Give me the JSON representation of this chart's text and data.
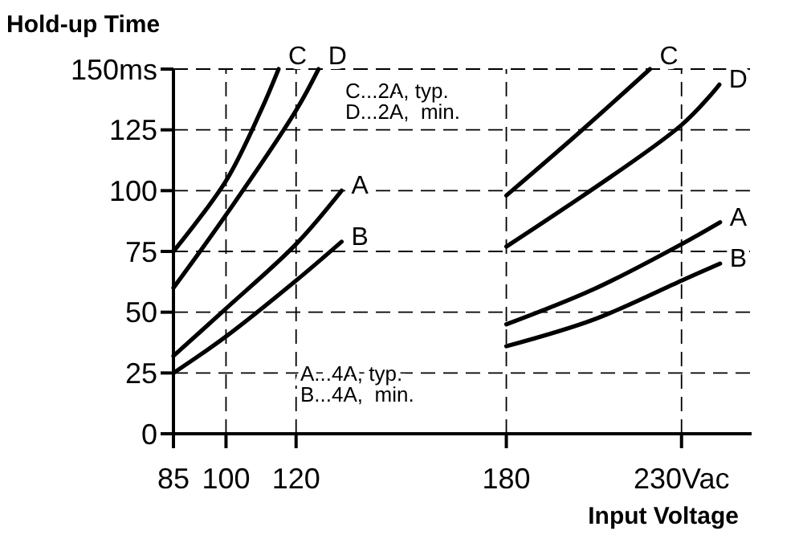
{
  "chart_data": {
    "type": "line",
    "ylabel": "Hold-up Time",
    "xlabel": "Input Voltage",
    "xlim": [
      85,
      250
    ],
    "xticks": [
      85,
      100,
      120,
      180,
      {
        "value": 230,
        "label": "230Vac"
      }
    ],
    "ylim": [
      0,
      150
    ],
    "yticks": [
      0,
      25,
      50,
      75,
      100,
      125,
      {
        "value": 150,
        "label": "150ms"
      }
    ],
    "grid": true,
    "line_style": "solid",
    "series": [
      {
        "name": "C",
        "color": "#000000",
        "x": [
          85,
          100,
          110,
          115,
          null,
          180,
          200.5,
          221
        ],
        "values": [
          75,
          104,
          133,
          150,
          null,
          98,
          123.5,
          150
        ]
      },
      {
        "name": "D",
        "color": "#000000",
        "x": [
          85,
          100,
          120,
          126.4,
          null,
          180,
          230,
          240.8
        ],
        "values": [
          60,
          90,
          133,
          150,
          null,
          77,
          127,
          143.6
        ]
      },
      {
        "name": "A",
        "color": "#000000",
        "x": [
          85,
          100,
          120,
          133,
          null,
          180,
          205,
          230,
          241
        ],
        "values": [
          32,
          51.5,
          78,
          100,
          null,
          45,
          59.5,
          78,
          87
        ]
      },
      {
        "name": "B",
        "color": "#000000",
        "x": [
          85,
          100,
          120,
          133,
          null,
          180,
          205,
          230,
          241
        ],
        "values": [
          25,
          40,
          63,
          79,
          null,
          36,
          47,
          63,
          70
        ]
      }
    ],
    "annotations": [
      "C...2A, typ.",
      "D...2A,  min.",
      "A...4A, typ.",
      "B...4A,  min."
    ]
  }
}
